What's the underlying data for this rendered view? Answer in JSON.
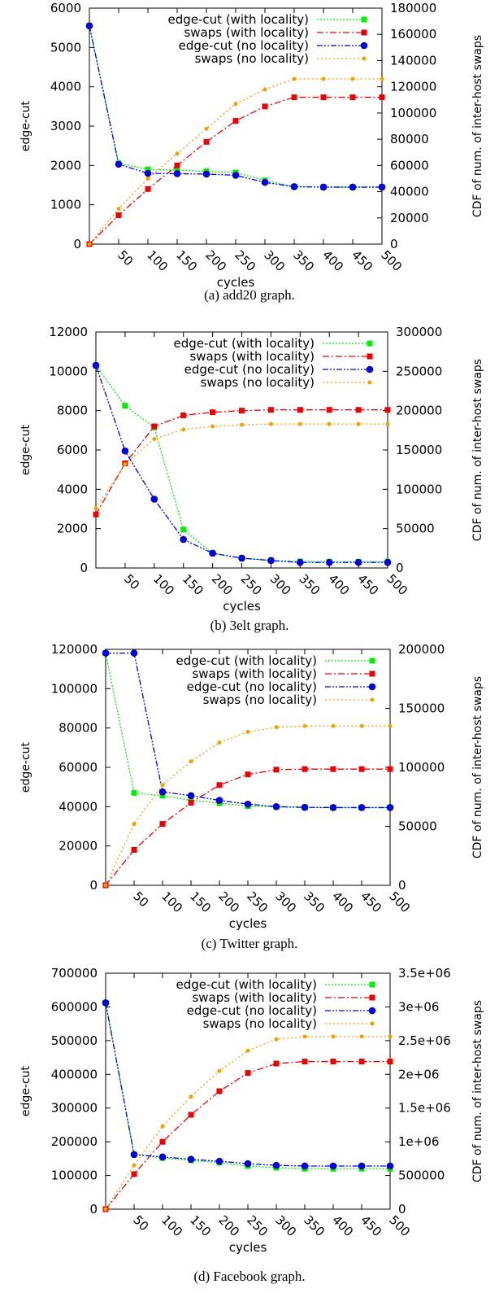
{
  "chart_data": [
    {
      "type": "line",
      "caption": "(a) add20 graph.",
      "xlabel": "cycles",
      "ylabel": "edge-cut",
      "y2label": "CDF of num. of inter-host swaps",
      "legend_position": "top-right",
      "x": [
        0,
        50,
        100,
        150,
        200,
        250,
        300,
        350,
        400,
        450,
        500
      ],
      "xtick_labels": [
        "50",
        "100",
        "150",
        "200",
        "250",
        "300",
        "350",
        "400",
        "450",
        "500"
      ],
      "ylim": [
        0,
        6000
      ],
      "yticks": [
        "0",
        "1000",
        "2000",
        "3000",
        "4000",
        "5000",
        "6000"
      ],
      "y2lim": [
        0,
        180000
      ],
      "y2ticks": [
        "0",
        "20000",
        "40000",
        "60000",
        "80000",
        "100000",
        "120000",
        "140000",
        "160000",
        "180000"
      ],
      "series": [
        {
          "name": "edge-cut (with locality)",
          "axis": "left",
          "color": "#00ee00",
          "marker": "square",
          "values": [
            5550,
            2050,
            1900,
            1880,
            1850,
            1820,
            1620,
            1460,
            1450,
            1450,
            1450
          ]
        },
        {
          "name": "swaps (with locality)",
          "axis": "right",
          "color": "#ee0000",
          "marker": "square",
          "values": [
            0,
            22000,
            42000,
            60000,
            78000,
            94000,
            105000,
            112000,
            112000,
            112000,
            112000
          ]
        },
        {
          "name": "edge-cut (no locality)",
          "axis": "left",
          "color": "#0000ee",
          "marker": "circle",
          "values": [
            5550,
            2030,
            1800,
            1790,
            1780,
            1750,
            1570,
            1460,
            1450,
            1450,
            1450
          ]
        },
        {
          "name": "swaps (no locality)",
          "axis": "right",
          "color": "#f0a000",
          "marker": "dot",
          "values": [
            0,
            27000,
            50000,
            69000,
            88000,
            107000,
            118000,
            126000,
            126000,
            126000,
            126000
          ]
        }
      ]
    },
    {
      "type": "line",
      "caption": "(b) 3elt graph.",
      "xlabel": "cycles",
      "ylabel": "edge-cut",
      "y2label": "CDF of num. of inter-host swaps",
      "legend_position": "top-right",
      "x": [
        0,
        50,
        100,
        150,
        200,
        250,
        300,
        350,
        400,
        450,
        500
      ],
      "xtick_labels": [
        "50",
        "100",
        "150",
        "200",
        "250",
        "300",
        "350",
        "400",
        "450",
        "500"
      ],
      "ylim": [
        0,
        12000
      ],
      "yticks": [
        "0",
        "2000",
        "4000",
        "6000",
        "8000",
        "10000",
        "12000"
      ],
      "y2lim": [
        0,
        300000
      ],
      "y2ticks": [
        "0",
        "50000",
        "100000",
        "150000",
        "200000",
        "250000",
        "300000"
      ],
      "series": [
        {
          "name": "edge-cut (with locality)",
          "axis": "left",
          "color": "#00ee00",
          "marker": "square",
          "values": [
            10300,
            8250,
            7150,
            1950,
            750,
            500,
            380,
            330,
            320,
            320,
            320
          ]
        },
        {
          "name": "swaps (with locality)",
          "axis": "right",
          "color": "#ee0000",
          "marker": "square",
          "values": [
            68000,
            133000,
            180000,
            194000,
            198000,
            200000,
            201000,
            201000,
            201000,
            201000,
            201000
          ]
        },
        {
          "name": "edge-cut (no locality)",
          "axis": "left",
          "color": "#0000ee",
          "marker": "circle",
          "values": [
            10300,
            5950,
            3500,
            1450,
            750,
            500,
            380,
            280,
            280,
            280,
            280
          ]
        },
        {
          "name": "swaps (no locality)",
          "axis": "right",
          "color": "#f0a000",
          "marker": "dot",
          "values": [
            76000,
            132000,
            164000,
            176000,
            180000,
            182000,
            183000,
            183000,
            183000,
            183000,
            183000
          ]
        }
      ]
    },
    {
      "type": "line",
      "caption": "(c) Twitter graph.",
      "xlabel": "cycles",
      "ylabel": "edge-cut",
      "y2label": "CDF of num. of inter-host swaps",
      "legend_position": "top-right",
      "x": [
        0,
        50,
        100,
        150,
        200,
        250,
        300,
        350,
        400,
        450,
        500
      ],
      "xtick_labels": [
        "50",
        "100",
        "150",
        "200",
        "250",
        "300",
        "350",
        "400",
        "450",
        "500"
      ],
      "ylim": [
        0,
        125000
      ],
      "yticks": [
        "0",
        "20000",
        "40000",
        "60000",
        "80000",
        "100000",
        "120000"
      ],
      "y2lim": [
        0,
        200000
      ],
      "y2ticks": [
        "0",
        "50000",
        "100000",
        "150000",
        "200000"
      ],
      "series": [
        {
          "name": "edge-cut (with locality)",
          "axis": "left",
          "color": "#00ee00",
          "marker": "square",
          "values": [
            123000,
            49000,
            47500,
            45000,
            43500,
            42000,
            41500,
            41300,
            41200,
            41200,
            41200
          ]
        },
        {
          "name": "swaps (with locality)",
          "axis": "right",
          "color": "#ee0000",
          "marker": "square",
          "values": [
            0,
            30000,
            52000,
            70000,
            85000,
            94000,
            98000,
            98500,
            98500,
            98500,
            98500
          ]
        },
        {
          "name": "edge-cut (no locality)",
          "axis": "left",
          "color": "#0000ee",
          "marker": "circle",
          "values": [
            123000,
            123000,
            49500,
            47500,
            45000,
            43000,
            41700,
            41300,
            41200,
            41200,
            41200
          ]
        },
        {
          "name": "swaps (no locality)",
          "axis": "right",
          "color": "#f0a000",
          "marker": "dot",
          "values": [
            0,
            52000,
            85000,
            105000,
            121000,
            130000,
            134000,
            135000,
            135000,
            135000,
            135000
          ]
        }
      ]
    },
    {
      "type": "line",
      "caption": "(d) Facebook graph.",
      "xlabel": "cycles",
      "ylabel": "edge-cut",
      "y2label": "CDF of num. of inter-host swaps",
      "legend_position": "top-right",
      "x": [
        0,
        50,
        100,
        150,
        200,
        250,
        300,
        350,
        400,
        450,
        500
      ],
      "xtick_labels": [
        "50",
        "100",
        "150",
        "200",
        "250",
        "300",
        "350",
        "400",
        "450",
        "500"
      ],
      "ylim": [
        0,
        700000
      ],
      "yticks": [
        "0",
        "100000",
        "200000",
        "300000",
        "400000",
        "500000",
        "600000",
        "700000"
      ],
      "y2lim": [
        0,
        3500000
      ],
      "y2ticks": [
        "0",
        "500000",
        "1e+06",
        "1.5e+06",
        "2e+06",
        "2.5e+06",
        "3e+06",
        "3.5e+06"
      ],
      "series": [
        {
          "name": "edge-cut (with locality)",
          "axis": "left",
          "color": "#00ee00",
          "marker": "square",
          "values": [
            612000,
            162000,
            152000,
            145000,
            138000,
            128000,
            123000,
            120000,
            120000,
            120000,
            120000
          ]
        },
        {
          "name": "swaps (with locality)",
          "axis": "right",
          "color": "#ee0000",
          "marker": "square",
          "values": [
            0,
            520000,
            1000000,
            1400000,
            1750000,
            2020000,
            2160000,
            2190000,
            2190000,
            2190000,
            2190000
          ]
        },
        {
          "name": "edge-cut (no locality)",
          "axis": "left",
          "color": "#0000ee",
          "marker": "circle",
          "values": [
            612000,
            162000,
            155000,
            148000,
            142000,
            135000,
            130000,
            128000,
            128000,
            128000,
            128000
          ]
        },
        {
          "name": "swaps (no locality)",
          "axis": "right",
          "color": "#f0a000",
          "marker": "dot",
          "values": [
            0,
            650000,
            1230000,
            1670000,
            2050000,
            2350000,
            2520000,
            2560000,
            2560000,
            2560000,
            2560000
          ]
        }
      ]
    }
  ]
}
